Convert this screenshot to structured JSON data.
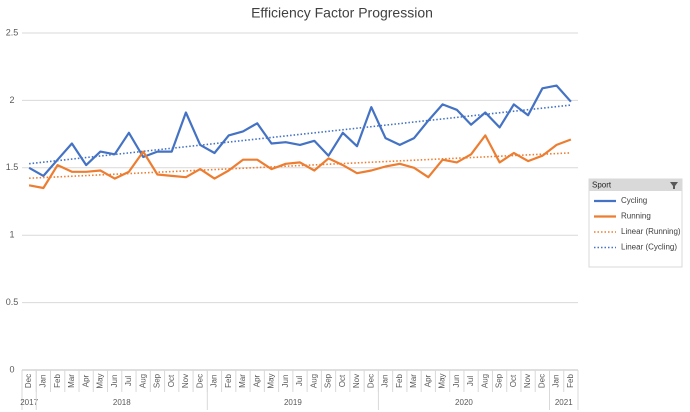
{
  "chart_data": {
    "type": "line",
    "title": "Efficiency Factor Progression",
    "category_groups": [
      {
        "label": "2017",
        "categories": [
          "Dec"
        ]
      },
      {
        "label": "2018",
        "categories": [
          "Jan",
          "Feb",
          "Mar",
          "Apr",
          "May",
          "Jun",
          "Jul",
          "Aug",
          "Sep",
          "Oct",
          "Nov",
          "Dec"
        ]
      },
      {
        "label": "2019",
        "categories": [
          "Jan",
          "Feb",
          "Mar",
          "Apr",
          "May",
          "Jun",
          "Jul",
          "Aug",
          "Sep",
          "Oct",
          "Nov",
          "Dec"
        ]
      },
      {
        "label": "2020",
        "categories": [
          "Jan",
          "Feb",
          "Mar",
          "Apr",
          "May",
          "Jun",
          "Jul",
          "Aug",
          "Sep",
          "Oct",
          "Nov",
          "Dec"
        ]
      },
      {
        "label": "2021",
        "categories": [
          "Jan",
          "Feb"
        ]
      }
    ],
    "series": [
      {
        "name": "Cycling",
        "color": "#4472c4",
        "trendline": "Linear (Cycling)",
        "values": [
          1.5,
          1.44,
          1.56,
          1.68,
          1.52,
          1.62,
          1.6,
          1.76,
          1.58,
          1.62,
          1.62,
          1.91,
          1.67,
          1.61,
          1.74,
          1.77,
          1.83,
          1.68,
          1.69,
          1.67,
          1.7,
          1.59,
          1.76,
          1.66,
          1.95,
          1.72,
          1.67,
          1.72,
          1.85,
          1.97,
          1.93,
          1.82,
          1.91,
          1.8,
          1.97,
          1.89,
          2.09,
          2.11,
          1.99
        ]
      },
      {
        "name": "Running",
        "color": "#ed7d31",
        "trendline": "Linear (Running)",
        "values": [
          1.37,
          1.35,
          1.52,
          1.47,
          1.47,
          1.48,
          1.42,
          1.47,
          1.62,
          1.45,
          1.44,
          1.43,
          1.49,
          1.42,
          1.48,
          1.56,
          1.56,
          1.49,
          1.53,
          1.54,
          1.48,
          1.57,
          1.52,
          1.46,
          1.48,
          1.51,
          1.53,
          1.5,
          1.43,
          1.56,
          1.54,
          1.6,
          1.74,
          1.54,
          1.61,
          1.55,
          1.59,
          1.67,
          1.71
        ]
      }
    ],
    "ylim": [
      0,
      2.5
    ],
    "yticks": [
      0,
      0.5,
      1,
      1.5,
      2,
      2.5
    ],
    "grid": true,
    "legend_title": "Sport",
    "legend_position": "right"
  }
}
